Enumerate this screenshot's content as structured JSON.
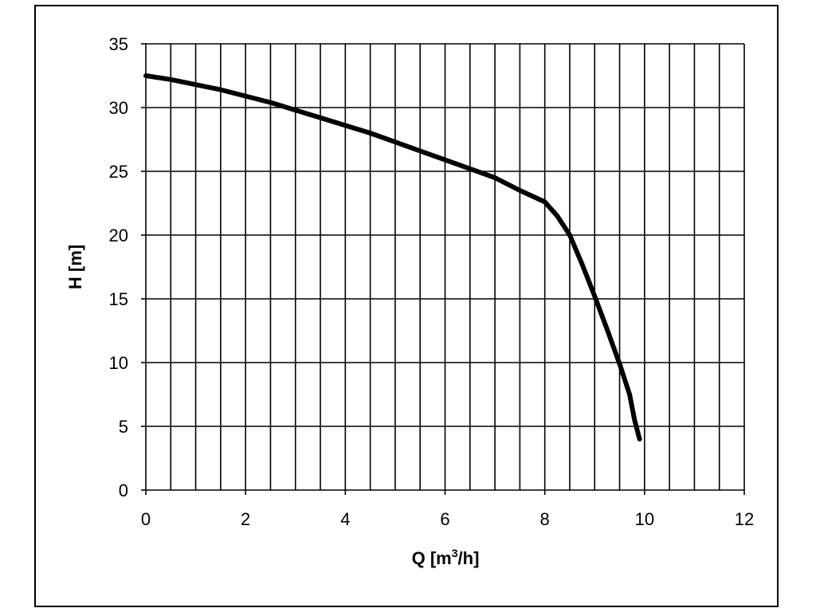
{
  "chart_data": {
    "type": "line",
    "title": "",
    "xlabel": "Q [m³/h]",
    "xlabel_parts": {
      "base": "Q [m",
      "sup": "3",
      "tail": "/h]"
    },
    "ylabel": "H [m]",
    "xlim": [
      0,
      12
    ],
    "ylim": [
      0,
      35
    ],
    "x_ticks": [
      "0",
      "2",
      "4",
      "6",
      "8",
      "10",
      "12"
    ],
    "y_ticks": [
      "0",
      "5",
      "10",
      "15",
      "20",
      "25",
      "30",
      "35"
    ],
    "x_minor_grid_step": 0.5,
    "y_grid_step": 5,
    "grid": true,
    "legend": "none",
    "series": [
      {
        "color": "#000000",
        "points": [
          [
            0,
            32.5
          ],
          [
            0.5,
            32.2
          ],
          [
            1,
            31.8
          ],
          [
            1.5,
            31.4
          ],
          [
            2,
            30.9
          ],
          [
            2.5,
            30.4
          ],
          [
            3,
            29.8
          ],
          [
            3.5,
            29.2
          ],
          [
            4,
            28.6
          ],
          [
            4.5,
            28.0
          ],
          [
            5,
            27.3
          ],
          [
            5.5,
            26.6
          ],
          [
            6,
            25.9
          ],
          [
            6.5,
            25.2
          ],
          [
            7,
            24.5
          ],
          [
            7.5,
            23.5
          ],
          [
            8,
            22.6
          ],
          [
            8.25,
            21.5
          ],
          [
            8.5,
            20.0
          ],
          [
            8.75,
            17.7
          ],
          [
            9,
            15.2
          ],
          [
            9.25,
            12.6
          ],
          [
            9.5,
            9.9
          ],
          [
            9.7,
            7.5
          ],
          [
            9.8,
            5.5
          ],
          [
            9.9,
            4.0
          ]
        ]
      }
    ]
  }
}
